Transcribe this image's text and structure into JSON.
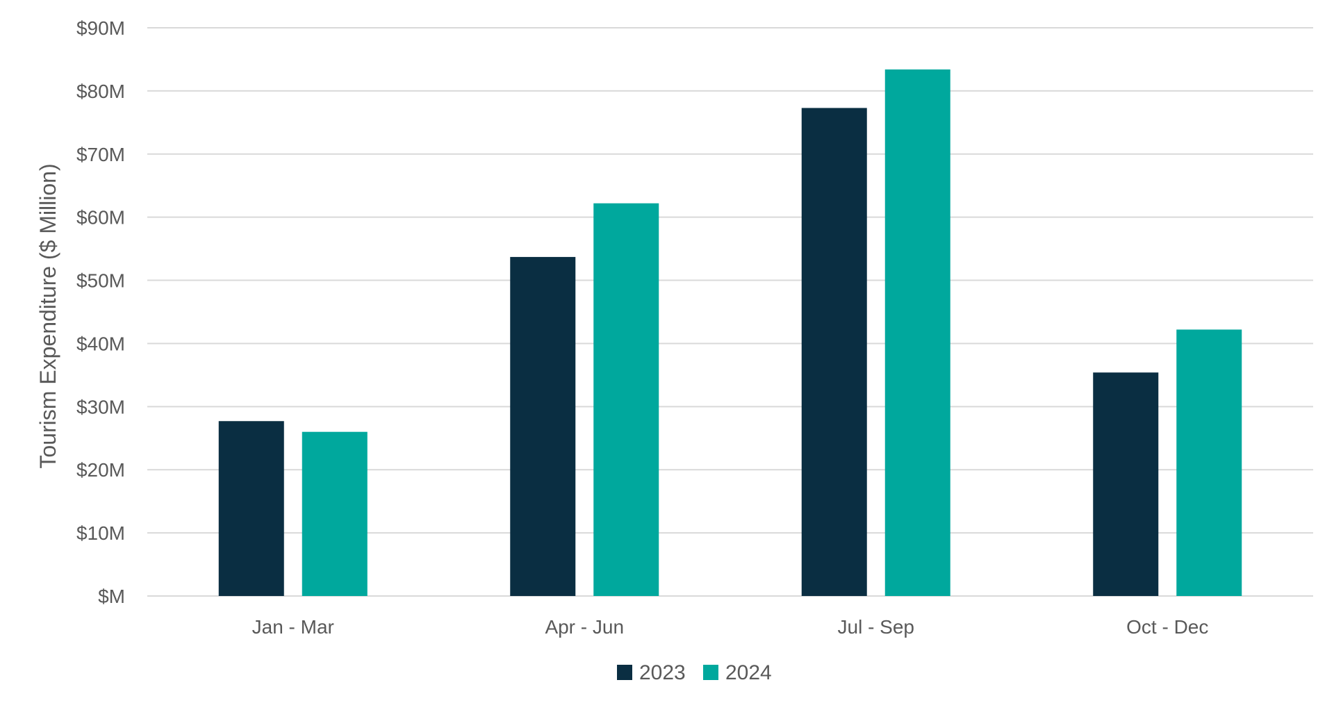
{
  "chart_data": {
    "type": "bar",
    "title": "",
    "xlabel": "",
    "ylabel": "Tourism Expenditure ($ Million)",
    "categories": [
      "Jan - Mar",
      "Apr - Jun",
      "Jul - Sep",
      "Oct - Dec"
    ],
    "series": [
      {
        "name": "2023",
        "values": [
          27.7,
          53.7,
          77.3,
          35.4
        ],
        "color": "#0a2e42"
      },
      {
        "name": "2024",
        "values": [
          26.0,
          62.2,
          83.4,
          42.2
        ],
        "color": "#00a89d"
      }
    ],
    "ylim": [
      0,
      90
    ],
    "ytick_step": 10,
    "ytick_labels": [
      "$M",
      "$10M",
      "$20M",
      "$30M",
      "$40M",
      "$50M",
      "$60M",
      "$70M",
      "$80M",
      "$90M"
    ],
    "grid": true,
    "grid_color": "#d9d9d9",
    "legend_position": "bottom-center"
  }
}
